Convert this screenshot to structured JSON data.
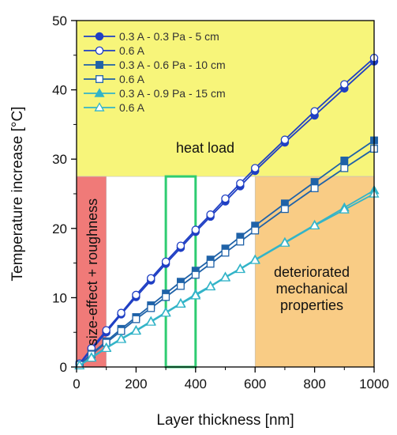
{
  "chart_data": {
    "type": "line",
    "xlabel": "Layer thickness [nm]",
    "ylabel": "Temperature increase [°C]",
    "xlim": [
      0,
      1000
    ],
    "ylim": [
      0,
      50
    ],
    "x_ticks": [
      0,
      200,
      400,
      600,
      800,
      1000
    ],
    "y_ticks": [
      0,
      10,
      20,
      30,
      40,
      50
    ],
    "grid": false,
    "legend_position": "top-left",
    "colors": {
      "dark_blue": "#1f3fc4",
      "mid_blue": "#1f62a8",
      "cyan": "#33b4c8",
      "yellow_region": "#f7f57a",
      "red_region": "#f07a78",
      "orange_region": "#f9cc85",
      "green_box": "#2ecc71"
    },
    "series": [
      {
        "name": "0.3 A - 0.3 Pa  - 5 cm",
        "color": "#1f3fc4",
        "marker": "circle",
        "filled": true,
        "x": [
          10,
          50,
          100,
          150,
          200,
          250,
          300,
          350,
          400,
          450,
          500,
          550,
          600,
          700,
          800,
          900,
          1000
        ],
        "y": [
          0.4,
          2.5,
          5.0,
          7.6,
          10.1,
          12.5,
          14.9,
          17.2,
          19.5,
          21.7,
          23.9,
          26.1,
          28.3,
          32.4,
          36.3,
          40.2,
          44.1
        ]
      },
      {
        "name": "0.6 A",
        "color": "#1f3fc4",
        "marker": "circle",
        "filled": false,
        "x": [
          10,
          50,
          100,
          150,
          200,
          250,
          300,
          350,
          400,
          450,
          500,
          550,
          600,
          700,
          800,
          900,
          1000
        ],
        "y": [
          0.5,
          2.7,
          5.3,
          7.8,
          10.4,
          12.8,
          15.2,
          17.5,
          19.8,
          22.0,
          24.3,
          26.5,
          28.7,
          32.8,
          36.9,
          40.8,
          44.6
        ]
      },
      {
        "name": "0.3 A - 0.6 Pa  - 10 cm",
        "color": "#1f62a8",
        "marker": "square",
        "filled": true,
        "x": [
          10,
          50,
          100,
          150,
          200,
          250,
          300,
          350,
          400,
          450,
          500,
          550,
          600,
          700,
          800,
          900,
          1000
        ],
        "y": [
          0.3,
          1.9,
          3.7,
          5.5,
          7.2,
          8.9,
          10.6,
          12.3,
          13.9,
          15.5,
          17.1,
          18.8,
          20.4,
          23.6,
          26.7,
          29.8,
          32.7
        ]
      },
      {
        "name": "0.6 A",
        "color": "#1f62a8",
        "marker": "square",
        "filled": false,
        "x": [
          10,
          50,
          100,
          150,
          200,
          250,
          300,
          350,
          400,
          450,
          500,
          550,
          600,
          700,
          800,
          900,
          1000
        ],
        "y": [
          0.3,
          1.8,
          3.5,
          5.2,
          6.9,
          8.5,
          10.1,
          11.7,
          13.3,
          14.9,
          16.5,
          18.1,
          19.7,
          22.8,
          25.8,
          28.7,
          31.5
        ]
      },
      {
        "name": "0.3 A - 0.9 Pa  - 15 cm",
        "color": "#33b4c8",
        "marker": "triangle",
        "filled": true,
        "x": [
          10,
          50,
          100,
          150,
          200,
          250,
          300,
          350,
          400,
          450,
          500,
          550,
          600,
          700,
          800,
          900,
          1000
        ],
        "y": [
          0.2,
          1.4,
          2.8,
          4.1,
          5.3,
          6.6,
          7.9,
          9.2,
          10.5,
          11.7,
          13.0,
          14.2,
          15.5,
          18.0,
          20.5,
          23.0,
          25.5
        ]
      },
      {
        "name": "0.6 A",
        "color": "#33b4c8",
        "marker": "triangle",
        "filled": false,
        "x": [
          10,
          50,
          100,
          150,
          200,
          250,
          300,
          350,
          400,
          450,
          500,
          550,
          600,
          700,
          800,
          900,
          1000
        ],
        "y": [
          0.2,
          1.3,
          2.7,
          4.0,
          5.2,
          6.5,
          7.8,
          9.1,
          10.3,
          11.6,
          12.9,
          14.1,
          15.4,
          17.9,
          20.4,
          22.7,
          25.0
        ]
      }
    ],
    "regions": [
      {
        "id": "heat-load",
        "label": "heat load",
        "x": [
          0,
          1000
        ],
        "y": [
          27.5,
          50
        ],
        "color": "#f7f57a"
      },
      {
        "id": "size-effect",
        "label": "size-effect + roughness",
        "x": [
          0,
          100
        ],
        "y": [
          0,
          27.5
        ],
        "color": "#f07a78"
      },
      {
        "id": "deteriorated",
        "label_lines": [
          "deteriorated",
          "mechanical",
          "properties"
        ],
        "x": [
          600,
          1000
        ],
        "y": [
          0,
          27.5
        ],
        "color": "#f9cc85"
      }
    ],
    "highlight_box": {
      "x": [
        300,
        400
      ],
      "y": [
        0,
        27.5
      ],
      "color": "#2ecc71"
    }
  }
}
